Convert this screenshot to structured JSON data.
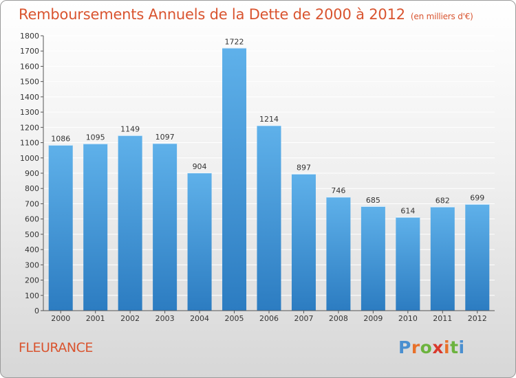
{
  "title": "Remboursements Annuels de la Dette de 2000 à 2012",
  "unit_note": "(en milliers d'€)",
  "commune": "FLEURANCE",
  "logo": {
    "text": "Proxiti",
    "letter_colors": [
      "#4a8fd0",
      "#e8702a",
      "#6cb33e",
      "#d9392c",
      "#e8702a",
      "#6cb33e",
      "#4a8fd0"
    ]
  },
  "colors": {
    "title": "#d9542f",
    "bar_top": "#5fb1ea",
    "bar_bottom": "#2c7cc1",
    "grid": "#ffffff",
    "axis": "#555555"
  },
  "chart_data": {
    "type": "bar",
    "categories": [
      "2000",
      "2001",
      "2002",
      "2003",
      "2004",
      "2005",
      "2006",
      "2007",
      "2008",
      "2009",
      "2010",
      "2011",
      "2012"
    ],
    "values": [
      1086,
      1095,
      1149,
      1097,
      904,
      1722,
      1214,
      897,
      746,
      685,
      614,
      682,
      699
    ],
    "ylim": [
      0,
      1800
    ],
    "yticks": [
      0,
      100,
      200,
      300,
      400,
      500,
      600,
      700,
      800,
      900,
      1000,
      1100,
      1200,
      1300,
      1400,
      1500,
      1600,
      1700,
      1800
    ],
    "grid": true,
    "data_labels": true
  }
}
